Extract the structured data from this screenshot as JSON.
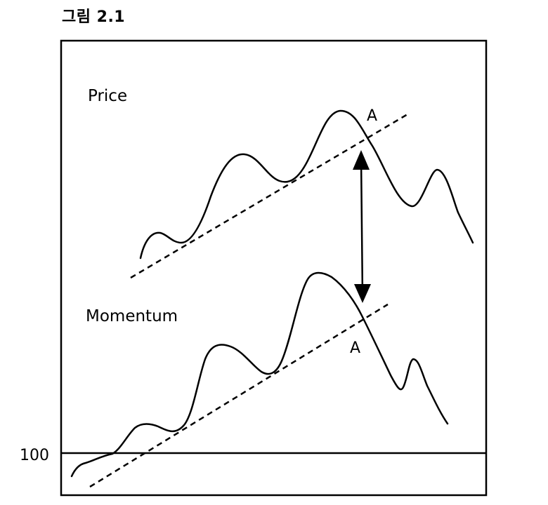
{
  "figure": {
    "title": "그림 2.1"
  },
  "labels": {
    "price": "Price",
    "momentum": "Momentum",
    "point_price": "A",
    "point_momentum": "A",
    "baseline": "100"
  },
  "colors": {
    "ink": "#000000",
    "background": "#ffffff"
  }
}
